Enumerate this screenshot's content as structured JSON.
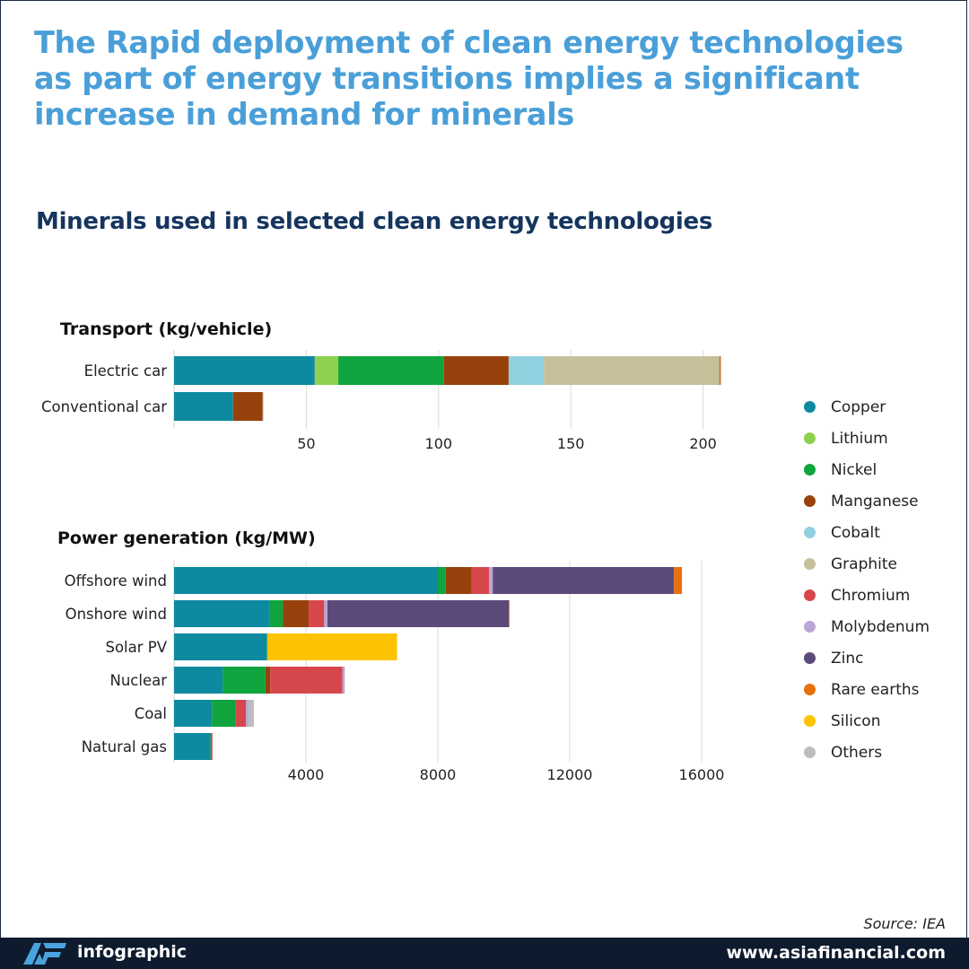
{
  "headline": "The Rapid deployment of clean energy technologies as part of energy transitions implies a significant increase in demand for minerals",
  "subtitle": "Minerals used in selected clean energy technologies",
  "legend": [
    {
      "name": "Copper",
      "color": "#0e8aa0"
    },
    {
      "name": "Lithium",
      "color": "#8dd14f"
    },
    {
      "name": "Nickel",
      "color": "#0fa43d"
    },
    {
      "name": "Manganese",
      "color": "#97420d"
    },
    {
      "name": "Cobalt",
      "color": "#91d0df"
    },
    {
      "name": "Graphite",
      "color": "#c5c09a"
    },
    {
      "name": "Chromium",
      "color": "#d6474c"
    },
    {
      "name": "Molybdenum",
      "color": "#b9a6d6"
    },
    {
      "name": "Zinc",
      "color": "#5c4a7b"
    },
    {
      "name": "Rare earths",
      "color": "#e8700c"
    },
    {
      "name": "Silicon",
      "color": "#fbc300"
    },
    {
      "name": "Others",
      "color": "#bdbdbd"
    }
  ],
  "chart_data": [
    {
      "type": "bar",
      "orientation": "horizontal",
      "stacked": true,
      "title": "Transport (kg/vehicle)",
      "categories": [
        "Electric car",
        "Conventional car"
      ],
      "xticks": [
        50,
        100,
        150,
        200
      ],
      "xlim": [
        0,
        207
      ],
      "grid": true,
      "series": [
        {
          "name": "Copper",
          "values": [
            53.2,
            22.3
          ]
        },
        {
          "name": "Lithium",
          "values": [
            8.9,
            0
          ]
        },
        {
          "name": "Nickel",
          "values": [
            39.9,
            0
          ]
        },
        {
          "name": "Manganese",
          "values": [
            24.5,
            11.2
          ]
        },
        {
          "name": "Cobalt",
          "values": [
            13.3,
            0
          ]
        },
        {
          "name": "Graphite",
          "values": [
            66.3,
            0
          ]
        },
        {
          "name": "Chromium",
          "values": [
            0,
            0
          ]
        },
        {
          "name": "Molybdenum",
          "values": [
            0,
            0
          ]
        },
        {
          "name": "Zinc",
          "values": [
            0,
            0
          ]
        },
        {
          "name": "Rare earths",
          "values": [
            0.5,
            0
          ]
        },
        {
          "name": "Silicon",
          "values": [
            0,
            0
          ]
        },
        {
          "name": "Others",
          "values": [
            0.3,
            0.3
          ]
        }
      ]
    },
    {
      "type": "bar",
      "orientation": "horizontal",
      "stacked": true,
      "title": "Power generation (kg/MW)",
      "categories": [
        "Offshore wind",
        "Onshore wind",
        "Solar PV",
        "Nuclear",
        "Coal",
        "Natural gas"
      ],
      "xticks": [
        4000,
        8000,
        12000,
        16000
      ],
      "xlim": [
        0,
        16500
      ],
      "grid": true,
      "series": [
        {
          "name": "Copper",
          "values": [
            8000,
            2900,
            2822,
            1473,
            1150,
            1100
          ]
        },
        {
          "name": "Lithium",
          "values": [
            0,
            0,
            0,
            0,
            0,
            0
          ]
        },
        {
          "name": "Nickel",
          "values": [
            240,
            404,
            1,
            1297,
            721,
            16
          ]
        },
        {
          "name": "Manganese",
          "values": [
            790,
            780,
            0,
            148,
            0,
            0
          ]
        },
        {
          "name": "Cobalt",
          "values": [
            0,
            0,
            0,
            0,
            0,
            0
          ]
        },
        {
          "name": "Graphite",
          "values": [
            0,
            0,
            0,
            0,
            0,
            0
          ]
        },
        {
          "name": "Chromium",
          "values": [
            525,
            470,
            0,
            2190,
            308,
            48
          ]
        },
        {
          "name": "Molybdenum",
          "values": [
            109,
            99,
            0,
            70,
            66,
            0
          ]
        },
        {
          "name": "Zinc",
          "values": [
            5500,
            5500,
            0,
            0,
            0,
            0
          ]
        },
        {
          "name": "Rare earths",
          "values": [
            239,
            14,
            0,
            0,
            0,
            0
          ]
        },
        {
          "name": "Silicon",
          "values": [
            0,
            0,
            3940,
            0,
            0,
            0
          ]
        },
        {
          "name": "Others",
          "values": [
            0,
            0,
            0,
            0,
            175,
            0
          ]
        }
      ]
    }
  ],
  "source": "Source: IEA",
  "footer": {
    "label": "infographic",
    "url": "www.asiafinancial.com"
  }
}
